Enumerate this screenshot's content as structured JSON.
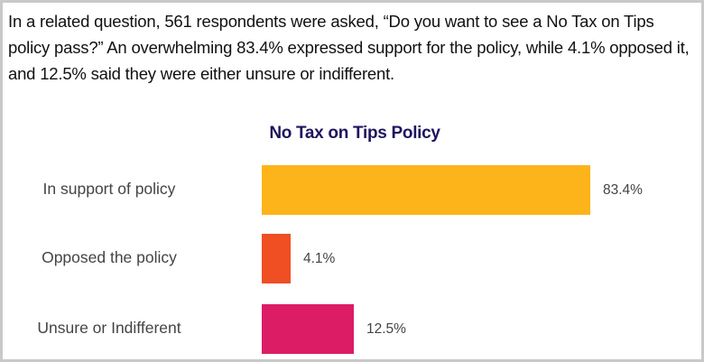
{
  "intro_text": "In a related question, 561 respondents were asked, “Do you want to see a No Tax on Tips policy pass?” An overwhelming 83.4% expressed support for the policy, while 4.1% opposed it, and 12.5% said they were either unsure or indifferent.",
  "chart_data": {
    "type": "bar",
    "orientation": "horizontal",
    "title": "No Tax on Tips Policy",
    "categories": [
      "In support of policy",
      "Opposed the policy",
      "Unsure or Indifferent"
    ],
    "values": [
      83.4,
      4.1,
      12.5
    ],
    "value_labels": [
      "83.4%",
      "4.1%",
      "12.5%"
    ],
    "colors": [
      "#fdb31a",
      "#f04e23",
      "#dd1c66"
    ],
    "xlabel": "",
    "ylabel": "",
    "xlim": [
      0,
      100
    ],
    "grid": false
  }
}
